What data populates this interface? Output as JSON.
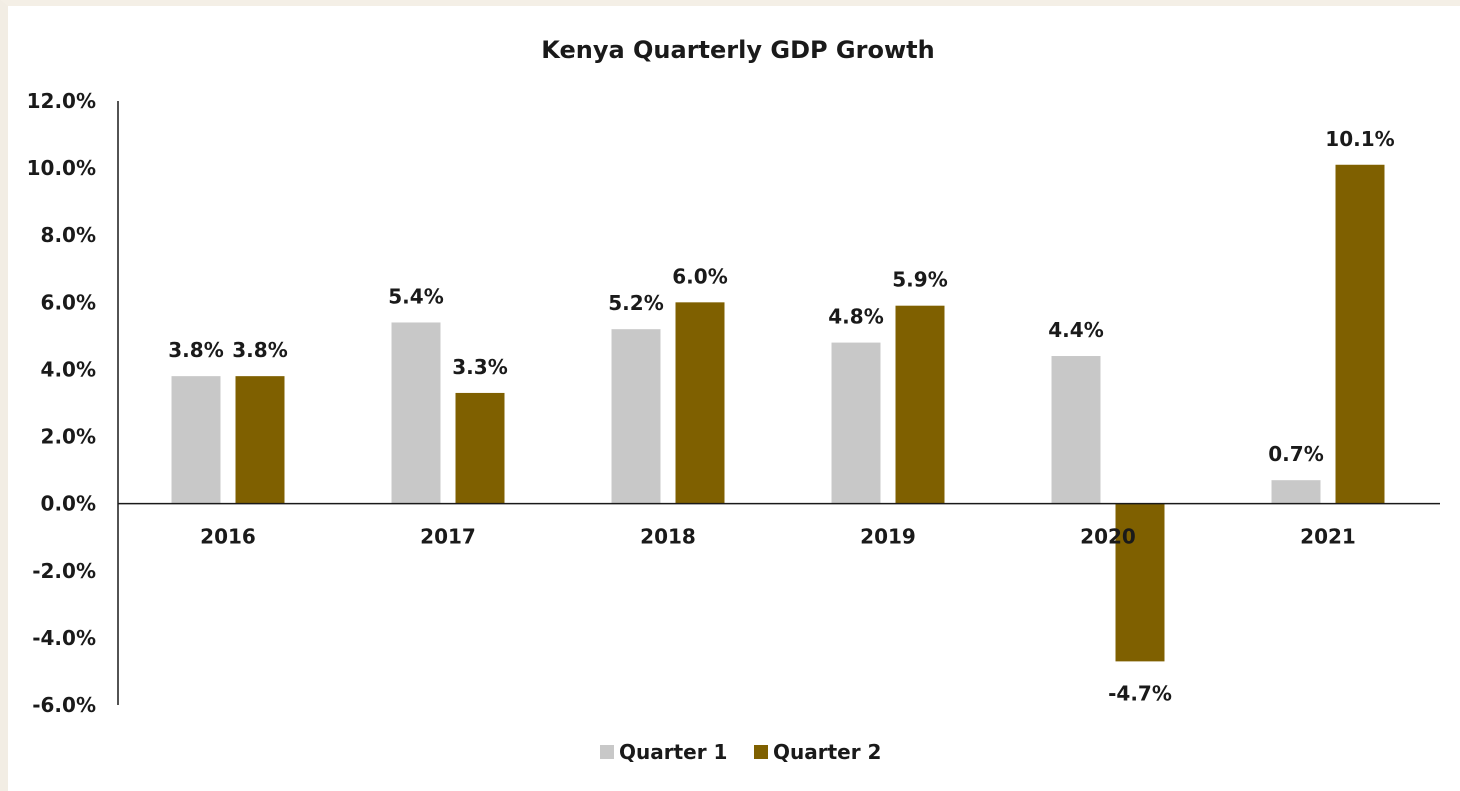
{
  "chart_data": {
    "type": "bar",
    "title": "Kenya Quarterly GDP Growth",
    "xlabel": "",
    "ylabel": "",
    "categories": [
      "2016",
      "2017",
      "2018",
      "2019",
      "2020",
      "2021"
    ],
    "series": [
      {
        "name": "Quarter 1",
        "color": "#c8c8c8",
        "values": [
          3.8,
          5.4,
          5.2,
          4.8,
          4.4,
          0.7
        ],
        "labels": [
          "3.8%",
          "5.4%",
          "5.2%",
          "4.8%",
          "4.4%",
          "0.7%"
        ]
      },
      {
        "name": "Quarter 2",
        "color": "#7f6000",
        "values": [
          3.8,
          3.3,
          6.0,
          5.9,
          -4.7,
          10.1
        ],
        "labels": [
          "3.8%",
          "3.3%",
          "6.0%",
          "5.9%",
          "-4.7%",
          "10.1%"
        ]
      }
    ],
    "ylim": [
      -6,
      12
    ],
    "yticks": [
      12,
      10,
      8,
      6,
      4,
      2,
      0,
      -2,
      -4,
      -6
    ],
    "ytick_labels": [
      "12.0%",
      "10.0%",
      "8.0%",
      "6.0%",
      "4.0%",
      "2.0%",
      "0.0%",
      "-2.0%",
      "-4.0%",
      "-6.0%"
    ],
    "grid": false,
    "legend": "bottom-center"
  }
}
